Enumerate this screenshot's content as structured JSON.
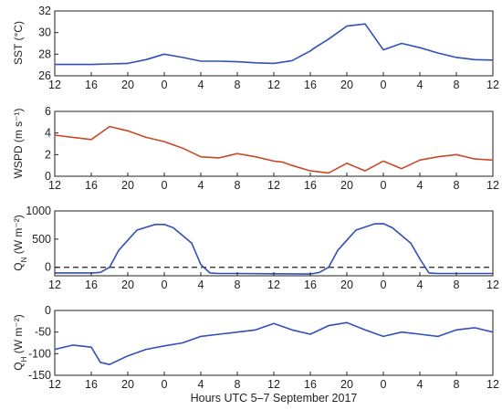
{
  "x_axis": {
    "label": "Hours UTC 5–7 September 2017",
    "tick_labels": [
      "12",
      "16",
      "20",
      "0",
      "4",
      "8",
      "12",
      "16",
      "20",
      "0",
      "4",
      "8",
      "12"
    ],
    "range_hours": [
      0,
      48
    ]
  },
  "chart_data": [
    {
      "type": "line",
      "ylabel_main": "SST",
      "ylabel_unit": "(°C)",
      "ylim": [
        26,
        32
      ],
      "yticks": [
        "26",
        "28",
        "30",
        "32"
      ],
      "y_tick_values": [
        26,
        28,
        30,
        32
      ],
      "grid": false,
      "color": "#3050b8",
      "x_hours": [
        0,
        4,
        8,
        10,
        12,
        14,
        16,
        18,
        20,
        22,
        24,
        26,
        28,
        28.5,
        30,
        32,
        34,
        36,
        38,
        40,
        42,
        44,
        46,
        48
      ],
      "values": [
        27.05,
        27.05,
        27.15,
        27.5,
        28.0,
        27.7,
        27.35,
        27.35,
        27.3,
        27.2,
        27.15,
        27.4,
        28.3,
        28.6,
        29.4,
        30.6,
        30.8,
        28.4,
        29.0,
        28.6,
        28.1,
        27.7,
        27.5,
        27.45
      ]
    },
    {
      "type": "line",
      "ylabel_main": "WSPD",
      "ylabel_unit": "(m s⁻¹)",
      "ylim": [
        0,
        6
      ],
      "yticks": [
        "0",
        "2",
        "4",
        "6"
      ],
      "y_tick_values": [
        0,
        2,
        4,
        6
      ],
      "grid": false,
      "color": "#c44a28",
      "x_hours": [
        0,
        2,
        4,
        6,
        8,
        10,
        12,
        14,
        16,
        18,
        20,
        22,
        24,
        25,
        26,
        28,
        30,
        32,
        34,
        36,
        38,
        40,
        42,
        44,
        46,
        48
      ],
      "values": [
        3.8,
        3.6,
        3.4,
        4.6,
        4.2,
        3.6,
        3.2,
        2.6,
        1.8,
        1.7,
        2.1,
        1.8,
        1.4,
        1.3,
        1.0,
        0.5,
        0.3,
        1.2,
        0.5,
        1.4,
        0.7,
        1.5,
        1.8,
        2.0,
        1.6,
        1.5
      ]
    },
    {
      "type": "line",
      "ylabel_main": "Q",
      "ylabel_sub": "N",
      "ylabel_unit": "(W m⁻²)",
      "ylim": [
        -150,
        1000
      ],
      "yticks": [
        "0",
        "500",
        "1000"
      ],
      "y_tick_values": [
        0,
        500,
        1000
      ],
      "zero_line": 0,
      "grid": false,
      "color": "#3050b8",
      "x_hours": [
        0,
        4,
        5,
        6,
        7,
        9,
        11,
        12,
        13,
        15,
        16,
        17,
        18,
        19,
        20,
        24,
        28,
        29,
        30,
        31,
        33,
        35,
        36,
        37,
        39,
        40,
        41,
        42,
        43,
        44,
        48
      ],
      "values": [
        -100,
        -100,
        -90,
        0,
        300,
        660,
        760,
        760,
        700,
        430,
        50,
        -100,
        -110,
        -110,
        -110,
        -115,
        -120,
        -90,
        0,
        300,
        660,
        770,
        775,
        700,
        430,
        150,
        -100,
        -110,
        -110,
        -110,
        -110
      ]
    },
    {
      "type": "line",
      "ylabel_main": "Q",
      "ylabel_sub": "H",
      "ylabel_unit": "(W m⁻²)",
      "ylim": [
        -150,
        0
      ],
      "yticks": [
        "-150",
        "-100",
        "-50",
        "0"
      ],
      "y_tick_values": [
        -150,
        -100,
        -50,
        0
      ],
      "grid": false,
      "color": "#3050b8",
      "x_hours": [
        0,
        2,
        4,
        5,
        6,
        8,
        10,
        12,
        14,
        16,
        18,
        20,
        22,
        24,
        26,
        28,
        30,
        32,
        34,
        36,
        38,
        40,
        42,
        44,
        46,
        48
      ],
      "values": [
        -90,
        -80,
        -85,
        -120,
        -125,
        -105,
        -90,
        -82,
        -75,
        -60,
        -55,
        -50,
        -45,
        -30,
        -45,
        -55,
        -35,
        -28,
        -45,
        -60,
        -50,
        -55,
        -60,
        -45,
        -40,
        -50
      ]
    }
  ]
}
